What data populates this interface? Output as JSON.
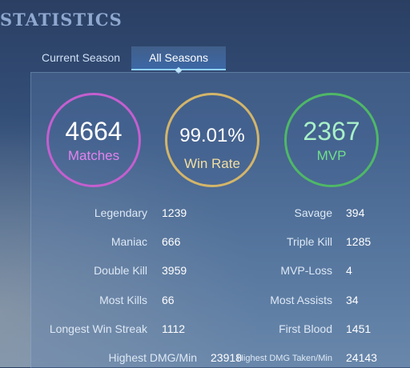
{
  "title": "STATISTICS",
  "tabs": [
    "Current Season",
    "All Seasons"
  ],
  "summary": {
    "matches": {
      "value": "4664",
      "label": "Matches",
      "color": "#c45fcf"
    },
    "win_rate": {
      "value": "99.01%",
      "label": "Win Rate",
      "color": "#d3b56a"
    },
    "mvp": {
      "value": "2367",
      "label": "MVP",
      "color": "#4fb867"
    }
  },
  "stats_left": [
    {
      "label": "Legendary",
      "value": "1239"
    },
    {
      "label": "Maniac",
      "value": "666"
    },
    {
      "label": "Double Kill",
      "value": "3959"
    },
    {
      "label": "Most Kills",
      "value": "66"
    },
    {
      "label": "Longest Win Streak",
      "value": "1112"
    },
    {
      "label": "Highest DMG/Min",
      "value": "23918"
    }
  ],
  "stats_right": [
    {
      "label": "Savage",
      "value": "394"
    },
    {
      "label": "Triple Kill",
      "value": "1285"
    },
    {
      "label": "MVP-Loss",
      "value": "4"
    },
    {
      "label": "Most Assists",
      "value": "34"
    },
    {
      "label": "First Blood",
      "value": "1451"
    },
    {
      "label": "Highest DMG Taken/Min",
      "value": "24143"
    }
  ]
}
